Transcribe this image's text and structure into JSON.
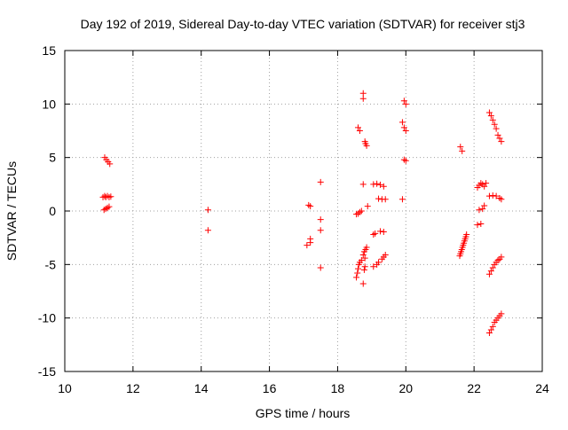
{
  "chart_data": {
    "type": "scatter",
    "title": "Day 192 of 2019, Sidereal Day-to-day VTEC variation (SDTVAR) for receiver stj3",
    "xlabel": "GPS time / hours",
    "ylabel": "SDTVAR / TECUs",
    "xlim": [
      10,
      24
    ],
    "ylim": [
      -15,
      15
    ],
    "xticks": [
      10,
      12,
      14,
      16,
      18,
      20,
      22,
      24
    ],
    "yticks": [
      -15,
      -10,
      -5,
      0,
      5,
      10,
      15
    ],
    "xtick_labels": [
      "10",
      "12",
      "14",
      "16",
      "18",
      "20",
      "22",
      "24"
    ],
    "ytick_labels": [
      "-15",
      "-10",
      "-5",
      "0",
      "5",
      "10",
      "15"
    ],
    "grid": true,
    "marker": "+",
    "color": "#ff0000",
    "series": [
      {
        "name": "stj3",
        "points": [
          [
            11.17,
            5.0
          ],
          [
            11.22,
            4.8
          ],
          [
            11.27,
            4.6
          ],
          [
            11.32,
            4.4
          ],
          [
            11.12,
            1.3
          ],
          [
            11.17,
            1.4
          ],
          [
            11.2,
            1.3
          ],
          [
            11.25,
            1.4
          ],
          [
            11.3,
            1.3
          ],
          [
            11.35,
            1.35
          ],
          [
            11.15,
            0.1
          ],
          [
            11.2,
            0.2
          ],
          [
            11.25,
            0.3
          ],
          [
            11.3,
            0.4
          ],
          [
            14.2,
            0.1
          ],
          [
            14.2,
            -1.8
          ],
          [
            17.15,
            0.55
          ],
          [
            17.2,
            0.45
          ],
          [
            17.2,
            -2.6
          ],
          [
            17.2,
            -2.95
          ],
          [
            17.1,
            -3.2
          ],
          [
            17.5,
            2.7
          ],
          [
            17.5,
            -0.8
          ],
          [
            17.5,
            -1.8
          ],
          [
            17.5,
            -5.3
          ],
          [
            18.6,
            7.8
          ],
          [
            18.65,
            7.5
          ],
          [
            18.75,
            11.0
          ],
          [
            18.75,
            10.5
          ],
          [
            18.8,
            6.5
          ],
          [
            18.82,
            6.3
          ],
          [
            18.85,
            6.1
          ],
          [
            18.75,
            2.5
          ],
          [
            18.55,
            -0.3
          ],
          [
            18.6,
            -0.25
          ],
          [
            18.65,
            -0.1
          ],
          [
            18.7,
            0.0
          ],
          [
            18.88,
            0.45
          ],
          [
            18.55,
            -6.2
          ],
          [
            18.58,
            -5.8
          ],
          [
            18.6,
            -5.4
          ],
          [
            18.62,
            -5.0
          ],
          [
            18.65,
            -4.8
          ],
          [
            18.7,
            -4.6
          ],
          [
            18.75,
            -6.8
          ],
          [
            18.78,
            -5.5
          ],
          [
            18.8,
            -5.2
          ],
          [
            18.75,
            -4.1
          ],
          [
            18.78,
            -3.8
          ],
          [
            18.82,
            -3.6
          ],
          [
            18.85,
            -3.4
          ],
          [
            18.8,
            -4.4
          ],
          [
            19.05,
            2.5
          ],
          [
            19.15,
            2.55
          ],
          [
            19.25,
            2.45
          ],
          [
            19.35,
            2.3
          ],
          [
            19.2,
            1.15
          ],
          [
            19.3,
            1.1
          ],
          [
            19.4,
            1.1
          ],
          [
            19.05,
            -2.2
          ],
          [
            19.1,
            -2.1
          ],
          [
            19.25,
            -1.9
          ],
          [
            19.35,
            -1.95
          ],
          [
            19.05,
            -5.2
          ],
          [
            19.15,
            -5.0
          ],
          [
            19.2,
            -4.8
          ],
          [
            19.3,
            -4.5
          ],
          [
            19.35,
            -4.3
          ],
          [
            19.4,
            -4.1
          ],
          [
            19.9,
            8.3
          ],
          [
            19.95,
            7.8
          ],
          [
            20.0,
            7.5
          ],
          [
            19.95,
            10.3
          ],
          [
            20.0,
            10.0
          ],
          [
            19.95,
            4.8
          ],
          [
            20.0,
            4.7
          ],
          [
            19.9,
            1.1
          ],
          [
            21.6,
            6.0
          ],
          [
            21.65,
            5.6
          ],
          [
            21.58,
            -4.2
          ],
          [
            21.6,
            -4.0
          ],
          [
            21.62,
            -3.8
          ],
          [
            21.64,
            -3.6
          ],
          [
            21.66,
            -3.4
          ],
          [
            21.68,
            -3.2
          ],
          [
            21.7,
            -3.0
          ],
          [
            21.72,
            -2.8
          ],
          [
            21.74,
            -2.6
          ],
          [
            21.76,
            -2.4
          ],
          [
            21.78,
            -2.2
          ],
          [
            22.1,
            2.2
          ],
          [
            22.15,
            2.4
          ],
          [
            22.2,
            2.6
          ],
          [
            22.25,
            2.5
          ],
          [
            22.3,
            2.3
          ],
          [
            22.35,
            2.6
          ],
          [
            22.1,
            -1.3
          ],
          [
            22.2,
            -1.2
          ],
          [
            22.15,
            0.1
          ],
          [
            22.25,
            0.2
          ],
          [
            22.3,
            0.5
          ],
          [
            22.45,
            9.2
          ],
          [
            22.5,
            8.9
          ],
          [
            22.55,
            8.5
          ],
          [
            22.6,
            8.1
          ],
          [
            22.65,
            7.7
          ],
          [
            22.7,
            7.1
          ],
          [
            22.75,
            6.8
          ],
          [
            22.8,
            6.5
          ],
          [
            22.45,
            1.4
          ],
          [
            22.55,
            1.45
          ],
          [
            22.65,
            1.4
          ],
          [
            22.75,
            1.2
          ],
          [
            22.8,
            1.1
          ],
          [
            22.45,
            -5.9
          ],
          [
            22.5,
            -5.6
          ],
          [
            22.55,
            -5.3
          ],
          [
            22.6,
            -5.0
          ],
          [
            22.65,
            -4.8
          ],
          [
            22.7,
            -4.6
          ],
          [
            22.75,
            -4.5
          ],
          [
            22.8,
            -4.3
          ],
          [
            22.45,
            -11.4
          ],
          [
            22.5,
            -11.1
          ],
          [
            22.55,
            -10.8
          ],
          [
            22.6,
            -10.4
          ],
          [
            22.65,
            -10.2
          ],
          [
            22.7,
            -10.0
          ],
          [
            22.75,
            -9.8
          ],
          [
            22.8,
            -9.6
          ]
        ]
      }
    ]
  }
}
